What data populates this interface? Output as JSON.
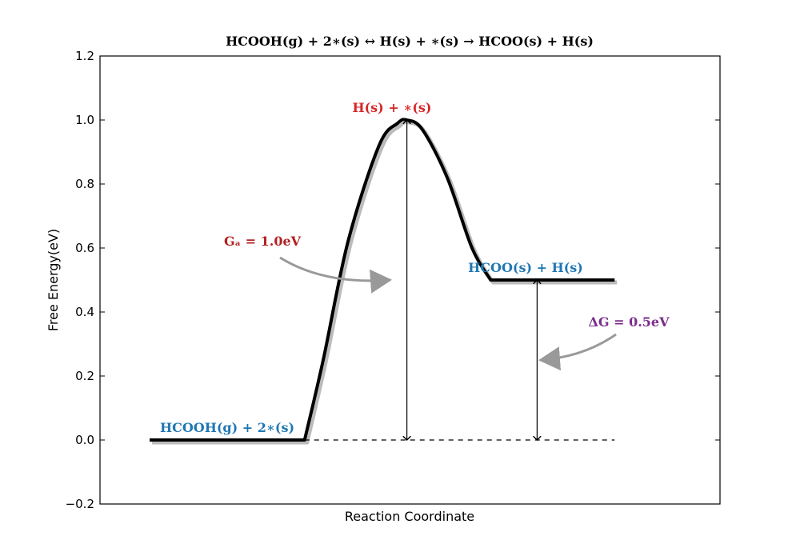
{
  "chart_data": {
    "type": "line",
    "title": "HCOOH(g) + 2∗(s) ↔ H(s) + ∗(s) → HCOO(s) + H(s)",
    "xlabel": "Reaction Coordinate",
    "ylabel": "Free Energy(eV)",
    "ylim": [
      -0.2,
      1.2
    ],
    "yticks": [
      -0.2,
      0.0,
      0.2,
      0.4,
      0.6,
      0.8,
      1.0,
      1.2
    ],
    "ytick_labels": [
      "−0.2",
      "0.0",
      "0.2",
      "0.4",
      "0.6",
      "0.8",
      "1.0",
      "1.2"
    ],
    "xlim": [
      0,
      10
    ],
    "grid": false,
    "energy_profile": {
      "initial_level": 0.0,
      "barrier_peak": 1.0,
      "final_level": 0.5,
      "points": [
        [
          0.8,
          0.0
        ],
        [
          3.3,
          0.0
        ],
        [
          3.6,
          0.25
        ],
        [
          4.0,
          0.62
        ],
        [
          4.5,
          0.92
        ],
        [
          4.8,
          0.99
        ],
        [
          4.95,
          1.0
        ],
        [
          5.2,
          0.97
        ],
        [
          5.6,
          0.82
        ],
        [
          6.0,
          0.6
        ],
        [
          6.3,
          0.5
        ],
        [
          8.3,
          0.5
        ]
      ],
      "baseline_from_x": 3.3,
      "baseline_to_x": 8.3
    },
    "annotations": {
      "initial_state": "HCOOH(g) + 2∗(s)",
      "transition_state": "H(s) + ∗(s)",
      "final_state": "HCOO(s) + H(s)",
      "activation_energy": "Gₐ = 1.0eV",
      "reaction_energy": "ΔG = 0.5eV"
    },
    "arrows": {
      "activation": {
        "x": 4.95,
        "from": 0.0,
        "to": 1.0
      },
      "reaction": {
        "x": 7.05,
        "from": 0.0,
        "to": 0.5
      }
    },
    "colors": {
      "curve": "#000000",
      "initial_state": "#1f77b4",
      "final_state": "#1f77b4",
      "transition_state": "#d62728",
      "activation_energy": "#b22222",
      "reaction_energy": "#7b2d8b",
      "pointer_arrow": "#999999"
    }
  }
}
